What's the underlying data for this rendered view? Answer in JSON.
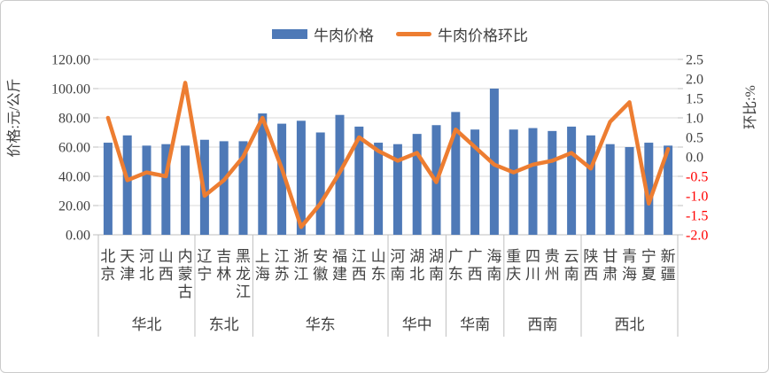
{
  "chart_data": {
    "type": "combo",
    "title": "",
    "categories": [
      "北京",
      "天津",
      "河北",
      "山西",
      "内蒙古",
      "辽宁",
      "吉林",
      "黑龙江",
      "上海",
      "江苏",
      "浙江",
      "安徽",
      "福建",
      "江西",
      "山东",
      "河南",
      "湖北",
      "湖南",
      "广东",
      "广西",
      "海南",
      "重庆",
      "四川",
      "贵州",
      "云南",
      "陕西",
      "甘肃",
      "青海",
      "宁夏",
      "新疆"
    ],
    "category_groups": [
      {
        "label": "华北",
        "count": 5
      },
      {
        "label": "东北",
        "count": 3
      },
      {
        "label": "华东",
        "count": 7
      },
      {
        "label": "华中",
        "count": 3
      },
      {
        "label": "华南",
        "count": 3
      },
      {
        "label": "西南",
        "count": 4
      },
      {
        "label": "西北",
        "count": 5
      }
    ],
    "series": [
      {
        "name": "牛肉价格",
        "type": "bar",
        "axis": "left",
        "color": "#4E79B7",
        "values": [
          63,
          68,
          61,
          62,
          61,
          65,
          64,
          64,
          83,
          76,
          78,
          70,
          82,
          74,
          63,
          62,
          69,
          75,
          84,
          72,
          100,
          72,
          73,
          71,
          74,
          68,
          62,
          60,
          63,
          61
        ]
      },
      {
        "name": "牛肉价格环比",
        "type": "line",
        "axis": "right",
        "color": "#ED7D31",
        "values": [
          1.0,
          -0.6,
          -0.4,
          -0.5,
          1.9,
          -1.0,
          -0.6,
          0.0,
          1.0,
          -0.3,
          -1.8,
          -1.2,
          -0.4,
          0.5,
          0.15,
          -0.1,
          0.1,
          -0.65,
          0.7,
          0.25,
          -0.2,
          -0.4,
          -0.2,
          -0.1,
          0.1,
          -0.3,
          0.9,
          1.4,
          -1.2,
          0.2
        ]
      }
    ],
    "left_axis": {
      "title": "价格:元/公斤",
      "min": 0,
      "max": 120,
      "step": 20,
      "labels": [
        "120.00",
        "100.00",
        "80.00",
        "60.00",
        "40.00",
        "20.00",
        "0.00"
      ]
    },
    "right_axis": {
      "title": "环比:%",
      "min": -2.0,
      "max": 2.5,
      "step": 0.5,
      "labels": [
        "2.5",
        "2.0",
        "1.5",
        "1.0",
        "0.5",
        "0.0",
        "-0.5",
        "-1.0",
        "-1.5",
        "-2.0"
      ],
      "negative_color": "#FF0000"
    },
    "legend_position": "top",
    "grid": true
  },
  "colors": {
    "bar": "#4E79B7",
    "line": "#ED7D31",
    "axis_text": "#404040",
    "negative_text": "#FF0000",
    "gridline": "#D9D9D9",
    "axis_line": "#BFBFBF",
    "border": "#CBCBCB",
    "background": "#FFFFFF"
  }
}
